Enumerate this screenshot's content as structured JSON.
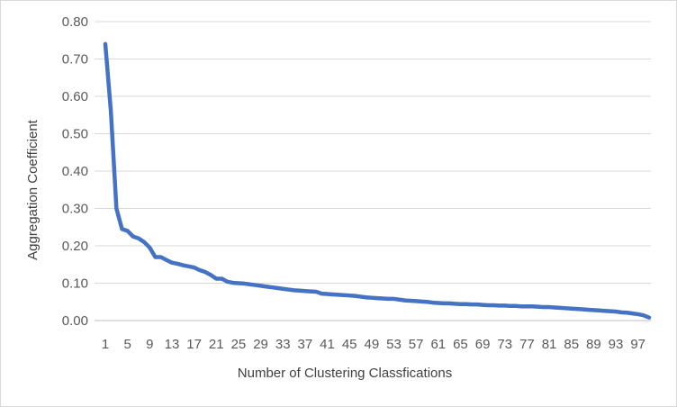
{
  "chart_data": {
    "type": "line",
    "title": "",
    "xlabel": "Number of Clustering Classfications",
    "ylabel": "Aggregation Coefficient",
    "x": [
      1,
      2,
      3,
      4,
      5,
      6,
      7,
      8,
      9,
      10,
      11,
      12,
      13,
      14,
      15,
      16,
      17,
      18,
      19,
      20,
      21,
      22,
      23,
      24,
      25,
      26,
      27,
      28,
      29,
      30,
      31,
      32,
      33,
      34,
      35,
      36,
      37,
      38,
      39,
      40,
      41,
      42,
      43,
      44,
      45,
      46,
      47,
      48,
      49,
      50,
      51,
      52,
      53,
      54,
      55,
      56,
      57,
      58,
      59,
      60,
      61,
      62,
      63,
      64,
      65,
      66,
      67,
      68,
      69,
      70,
      71,
      72,
      73,
      74,
      75,
      76,
      77,
      78,
      79,
      80,
      81,
      82,
      83,
      84,
      85,
      86,
      87,
      88,
      89,
      90,
      91,
      92,
      93,
      94,
      95,
      96,
      97,
      98,
      99
    ],
    "series": [
      {
        "values": [
          0.74,
          0.56,
          0.3,
          0.245,
          0.24,
          0.225,
          0.22,
          0.21,
          0.195,
          0.17,
          0.17,
          0.162,
          0.155,
          0.152,
          0.148,
          0.145,
          0.142,
          0.135,
          0.13,
          0.122,
          0.112,
          0.112,
          0.104,
          0.101,
          0.1,
          0.099,
          0.097,
          0.095,
          0.093,
          0.091,
          0.089,
          0.087,
          0.085,
          0.083,
          0.081,
          0.08,
          0.079,
          0.078,
          0.077,
          0.072,
          0.071,
          0.07,
          0.069,
          0.068,
          0.067,
          0.066,
          0.064,
          0.062,
          0.061,
          0.06,
          0.059,
          0.058,
          0.058,
          0.056,
          0.054,
          0.053,
          0.052,
          0.051,
          0.05,
          0.048,
          0.047,
          0.046,
          0.046,
          0.045,
          0.044,
          0.044,
          0.043,
          0.043,
          0.042,
          0.041,
          0.041,
          0.04,
          0.04,
          0.039,
          0.039,
          0.038,
          0.038,
          0.038,
          0.037,
          0.036,
          0.036,
          0.035,
          0.034,
          0.033,
          0.032,
          0.031,
          0.03,
          0.029,
          0.028,
          0.027,
          0.026,
          0.025,
          0.024,
          0.022,
          0.021,
          0.019,
          0.017,
          0.014,
          0.008
        ],
        "color": "#4472c4"
      }
    ],
    "x_tick_labels": [
      "1",
      "5",
      "9",
      "13",
      "17",
      "21",
      "25",
      "29",
      "33",
      "37",
      "41",
      "45",
      "49",
      "53",
      "57",
      "61",
      "65",
      "69",
      "73",
      "77",
      "81",
      "85",
      "89",
      "93",
      "97"
    ],
    "y_tick_labels": [
      "0.00",
      "0.10",
      "0.20",
      "0.30",
      "0.40",
      "0.50",
      "0.60",
      "0.70",
      "0.80"
    ],
    "ylim": [
      0,
      0.8
    ],
    "xlim": [
      1,
      99
    ],
    "grid": true,
    "legend": "none"
  }
}
